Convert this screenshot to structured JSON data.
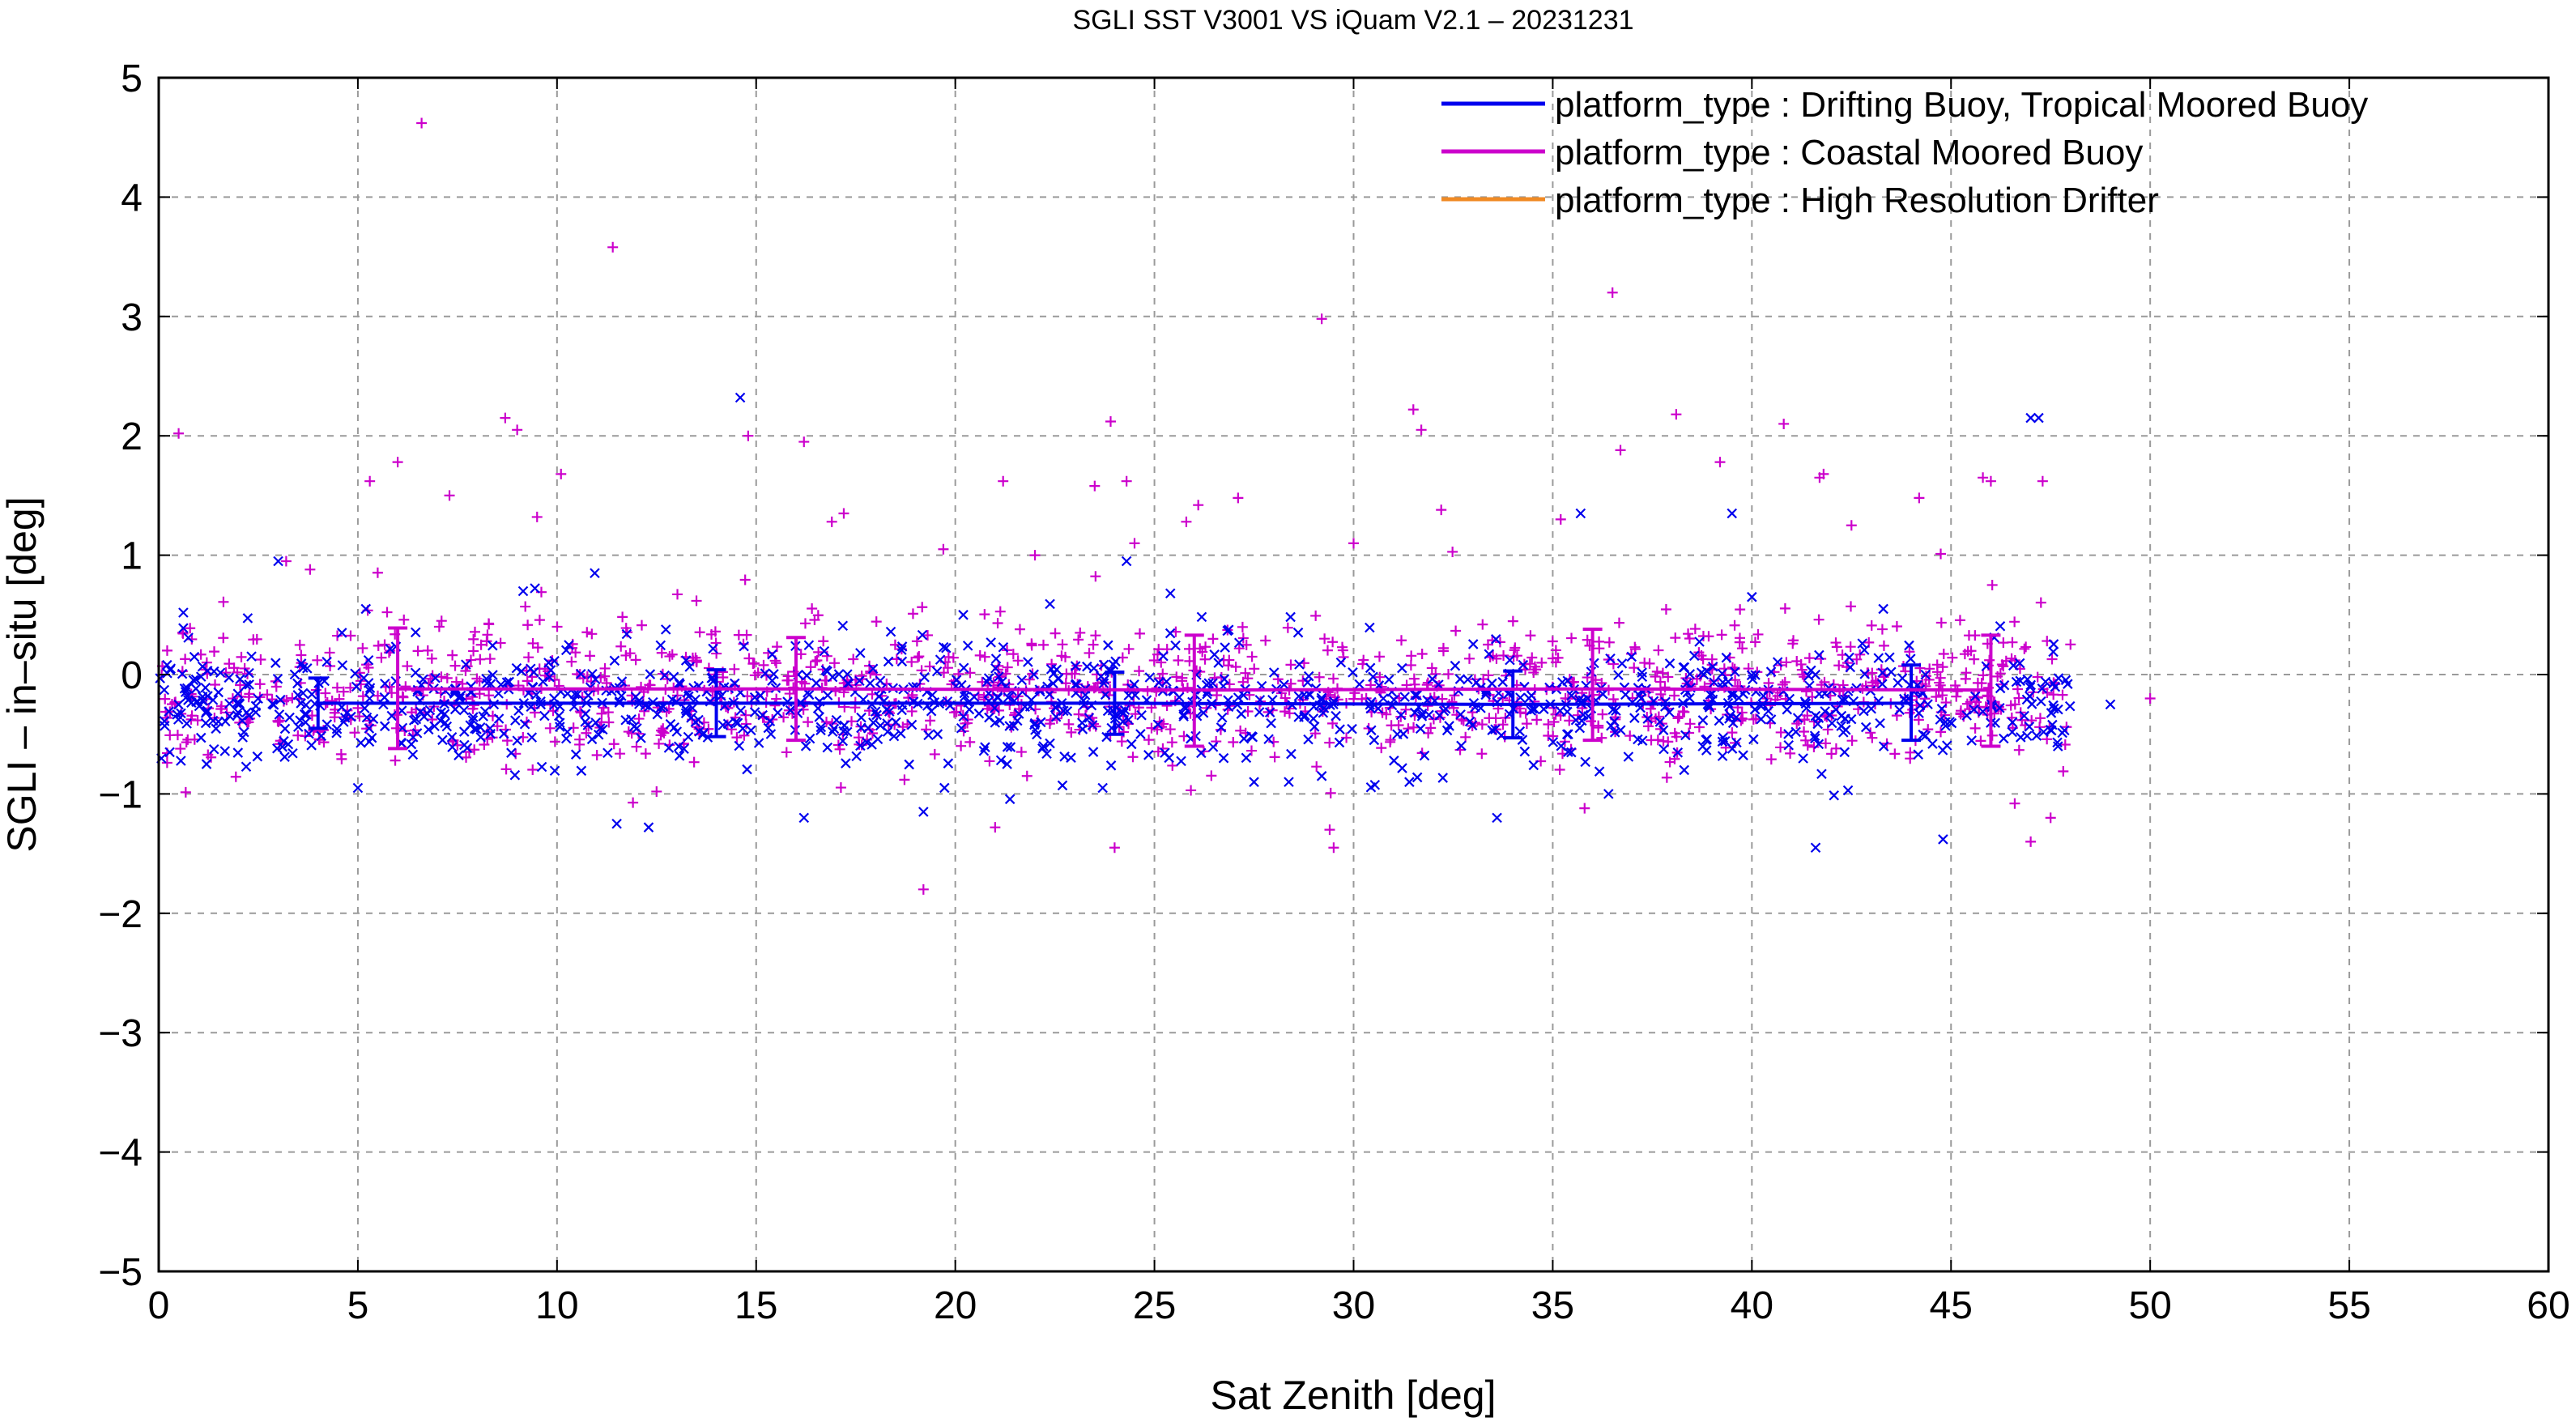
{
  "chart_data": {
    "type": "scatter",
    "title": "SGLI SST V3001 VS iQuam V2.1  – 20231231",
    "xlabel": "Sat Zenith [deg]",
    "ylabel": "SGLI – in–situ [deg]",
    "xlim": [
      0,
      60
    ],
    "ylim": [
      -5,
      5
    ],
    "xticks": [
      0,
      5,
      10,
      15,
      20,
      25,
      30,
      35,
      40,
      45,
      50,
      55,
      60
    ],
    "yticks": [
      -5,
      -4,
      -3,
      -2,
      -1,
      0,
      1,
      2,
      3,
      4,
      5
    ],
    "xtick_labels": [
      "0",
      "5",
      "10",
      "15",
      "20",
      "25",
      "30",
      "35",
      "40",
      "45",
      "50",
      "55",
      "60"
    ],
    "ytick_labels": [
      "−5",
      "−4",
      "−3",
      "−2",
      "−1",
      "0",
      "1",
      "2",
      "3",
      "4",
      "5"
    ],
    "grid": true,
    "legend_position": "top-right",
    "series": [
      {
        "name": "platform_type : Drifting Buoy, Tropical Moored Buoy",
        "color": "#0000ee",
        "marker": "x",
        "mean_line": [
          [
            4,
            -0.24
          ],
          [
            14,
            -0.24
          ],
          [
            24,
            -0.24
          ],
          [
            34,
            -0.25
          ],
          [
            44,
            -0.24
          ]
        ],
        "error_bars": [
          {
            "x": 4,
            "mean": -0.24,
            "low": -0.45,
            "high": -0.03
          },
          {
            "x": 14,
            "mean": -0.24,
            "low": -0.52,
            "high": 0.04
          },
          {
            "x": 24,
            "mean": -0.24,
            "low": -0.5,
            "high": 0.02
          },
          {
            "x": 34,
            "mean": -0.25,
            "low": -0.53,
            "high": 0.03
          },
          {
            "x": 44,
            "mean": -0.24,
            "low": -0.55,
            "high": 0.08
          }
        ],
        "outliers": [
          [
            0.3,
            0.05
          ],
          [
            1.2,
            -0.75
          ],
          [
            3.0,
            0.95
          ],
          [
            4.6,
            0.35
          ],
          [
            5.0,
            -0.95
          ],
          [
            5.2,
            0.55
          ],
          [
            11.5,
            -1.25
          ],
          [
            12.3,
            -1.28
          ],
          [
            14.6,
            2.32
          ],
          [
            16.2,
            -1.2
          ],
          [
            19.2,
            -1.15
          ],
          [
            20.2,
            0.5
          ],
          [
            21.3,
            -0.75
          ],
          [
            23.7,
            -0.95
          ],
          [
            24.3,
            0.95
          ],
          [
            25.4,
            0.68
          ],
          [
            27.5,
            -0.9
          ],
          [
            29.2,
            -0.85
          ],
          [
            31.4,
            -0.9
          ],
          [
            33.6,
            -1.2
          ],
          [
            35.7,
            1.35
          ],
          [
            36.4,
            -1.0
          ],
          [
            38.3,
            -0.8
          ],
          [
            39.5,
            1.35
          ],
          [
            40.0,
            0.65
          ],
          [
            41.6,
            -1.45
          ],
          [
            43.3,
            0.55
          ],
          [
            44.8,
            -1.38
          ],
          [
            47.0,
            2.15
          ],
          [
            47.2,
            2.15
          ],
          [
            49.0,
            -0.25
          ]
        ],
        "cluster": {
          "x_range": [
            0,
            48
          ],
          "center": -0.25,
          "spread": 0.22,
          "count": 1100
        }
      },
      {
        "name": "platform_type : Coastal Moored Buoy",
        "color": "#cc00cc",
        "marker": "+",
        "mean_line": [
          [
            6,
            -0.12
          ],
          [
            16,
            -0.12
          ],
          [
            26,
            -0.13
          ],
          [
            36,
            -0.12
          ],
          [
            46,
            -0.13
          ]
        ],
        "error_bars": [
          {
            "x": 6,
            "mean": -0.12,
            "low": -0.62,
            "high": 0.39
          },
          {
            "x": 16,
            "mean": -0.12,
            "low": -0.55,
            "high": 0.31
          },
          {
            "x": 26,
            "mean": -0.13,
            "low": -0.6,
            "high": 0.33
          },
          {
            "x": 36,
            "mean": -0.12,
            "low": -0.55,
            "high": 0.38
          },
          {
            "x": 46,
            "mean": -0.13,
            "low": -0.6,
            "high": 0.33
          }
        ],
        "outliers": [
          [
            0.5,
            2.02
          ],
          [
            0.6,
            0.35
          ],
          [
            3.2,
            0.95
          ],
          [
            3.8,
            0.88
          ],
          [
            5.3,
            1.62
          ],
          [
            6.0,
            1.78
          ],
          [
            6.6,
            4.62
          ],
          [
            7.3,
            1.5
          ],
          [
            8.7,
            2.15
          ],
          [
            9.0,
            2.05
          ],
          [
            9.5,
            1.32
          ],
          [
            10.1,
            1.68
          ],
          [
            11.4,
            3.58
          ],
          [
            12.5,
            -0.98
          ],
          [
            14.8,
            2.0
          ],
          [
            16.2,
            1.95
          ],
          [
            16.9,
            1.28
          ],
          [
            17.2,
            1.35
          ],
          [
            19.2,
            -1.8
          ],
          [
            19.7,
            1.05
          ],
          [
            21.0,
            -1.28
          ],
          [
            21.2,
            1.62
          ],
          [
            22.0,
            1.0
          ],
          [
            23.5,
            1.58
          ],
          [
            23.9,
            2.12
          ],
          [
            24.0,
            -1.45
          ],
          [
            24.3,
            1.62
          ],
          [
            24.5,
            1.1
          ],
          [
            25.8,
            1.28
          ],
          [
            26.1,
            1.42
          ],
          [
            27.1,
            1.48
          ],
          [
            29.2,
            2.98
          ],
          [
            29.4,
            -1.3
          ],
          [
            29.5,
            -1.45
          ],
          [
            30.0,
            1.1
          ],
          [
            31.5,
            2.22
          ],
          [
            31.7,
            2.05
          ],
          [
            32.2,
            1.38
          ],
          [
            35.2,
            1.3
          ],
          [
            35.8,
            -1.12
          ],
          [
            36.5,
            3.2
          ],
          [
            36.7,
            1.88
          ],
          [
            38.1,
            2.18
          ],
          [
            39.2,
            1.78
          ],
          [
            40.8,
            2.1
          ],
          [
            41.7,
            1.65
          ],
          [
            41.8,
            1.68
          ],
          [
            42.5,
            1.25
          ],
          [
            44.2,
            1.48
          ],
          [
            45.8,
            1.65
          ],
          [
            46.0,
            1.62
          ],
          [
            46.6,
            -1.08
          ],
          [
            47.0,
            -1.4
          ],
          [
            47.3,
            1.62
          ],
          [
            47.5,
            -1.2
          ],
          [
            50.0,
            -0.2
          ]
        ],
        "cluster": {
          "x_range": [
            0,
            48
          ],
          "center": -0.14,
          "spread": 0.28,
          "count": 1300
        }
      },
      {
        "name": "platform_type : High Resolution Drifter",
        "color": "#f08a24",
        "marker": "line",
        "points": []
      }
    ]
  }
}
